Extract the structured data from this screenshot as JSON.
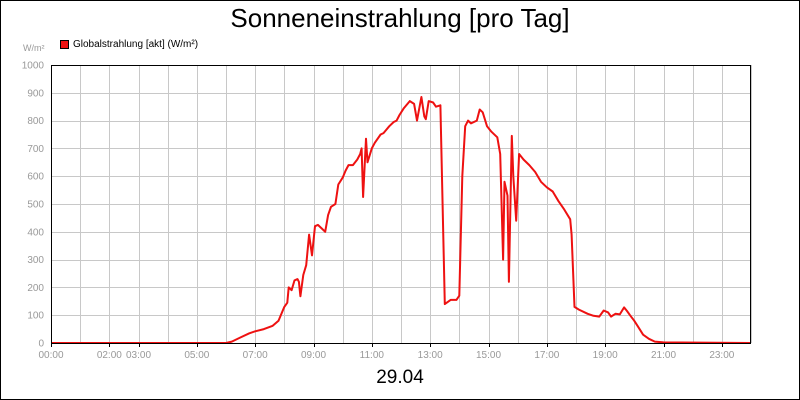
{
  "page": {
    "title": "Sonneneinstrahlung [pro Tag]",
    "date": "29.04",
    "unit": "W/m²"
  },
  "chart_data": {
    "type": "line",
    "title": "Sonneneinstrahlung [pro Tag]",
    "xlabel": "29.04",
    "ylabel": "W/m²",
    "xlim": [
      0,
      24
    ],
    "ylim": [
      0,
      1000
    ],
    "grid": true,
    "legend_position": "top-left",
    "x_tick_values": [
      0,
      2,
      3,
      5,
      7,
      9,
      11,
      13,
      15,
      17,
      19,
      21,
      23
    ],
    "x_tick_labels": [
      "00:00",
      "02:00",
      "03:00",
      "05:00",
      "07:00",
      "09:00",
      "11:00",
      "13:00",
      "15:00",
      "17:00",
      "19:00",
      "21:00",
      "23:00"
    ],
    "y_ticks": [
      0,
      100,
      200,
      300,
      400,
      500,
      600,
      700,
      800,
      900,
      1000
    ],
    "series": [
      {
        "name": "Globalstrahlung [akt] (W/m²)",
        "color": "#ee1111",
        "points": [
          [
            0.0,
            0
          ],
          [
            6.0,
            0
          ],
          [
            6.2,
            5
          ],
          [
            6.5,
            20
          ],
          [
            6.8,
            35
          ],
          [
            7.0,
            42
          ],
          [
            7.3,
            50
          ],
          [
            7.6,
            62
          ],
          [
            7.8,
            80
          ],
          [
            8.0,
            130
          ],
          [
            8.1,
            145
          ],
          [
            8.15,
            200
          ],
          [
            8.25,
            190
          ],
          [
            8.35,
            225
          ],
          [
            8.45,
            230
          ],
          [
            8.5,
            220
          ],
          [
            8.55,
            168
          ],
          [
            8.65,
            245
          ],
          [
            8.75,
            280
          ],
          [
            8.85,
            390
          ],
          [
            8.95,
            315
          ],
          [
            9.05,
            420
          ],
          [
            9.15,
            425
          ],
          [
            9.3,
            410
          ],
          [
            9.4,
            400
          ],
          [
            9.5,
            460
          ],
          [
            9.6,
            490
          ],
          [
            9.75,
            500
          ],
          [
            9.85,
            570
          ],
          [
            10.0,
            595
          ],
          [
            10.1,
            620
          ],
          [
            10.2,
            640
          ],
          [
            10.35,
            640
          ],
          [
            10.5,
            660
          ],
          [
            10.6,
            680
          ],
          [
            10.65,
            700
          ],
          [
            10.7,
            525
          ],
          [
            10.8,
            735
          ],
          [
            10.85,
            650
          ],
          [
            11.0,
            700
          ],
          [
            11.1,
            720
          ],
          [
            11.3,
            750
          ],
          [
            11.4,
            755
          ],
          [
            11.6,
            780
          ],
          [
            11.75,
            795
          ],
          [
            11.85,
            800
          ],
          [
            11.95,
            820
          ],
          [
            12.1,
            845
          ],
          [
            12.3,
            870
          ],
          [
            12.45,
            860
          ],
          [
            12.55,
            800
          ],
          [
            12.7,
            885
          ],
          [
            12.8,
            815
          ],
          [
            12.85,
            805
          ],
          [
            12.95,
            870
          ],
          [
            13.1,
            865
          ],
          [
            13.2,
            850
          ],
          [
            13.35,
            855
          ],
          [
            13.5,
            140
          ],
          [
            13.7,
            155
          ],
          [
            13.9,
            155
          ],
          [
            14.0,
            170
          ],
          [
            14.1,
            600
          ],
          [
            14.2,
            780
          ],
          [
            14.3,
            800
          ],
          [
            14.4,
            790
          ],
          [
            14.6,
            800
          ],
          [
            14.7,
            840
          ],
          [
            14.8,
            830
          ],
          [
            14.95,
            780
          ],
          [
            15.1,
            760
          ],
          [
            15.3,
            740
          ],
          [
            15.4,
            680
          ],
          [
            15.5,
            300
          ],
          [
            15.55,
            580
          ],
          [
            15.65,
            530
          ],
          [
            15.7,
            220
          ],
          [
            15.8,
            745
          ],
          [
            15.85,
            600
          ],
          [
            15.95,
            440
          ],
          [
            16.05,
            680
          ],
          [
            16.2,
            660
          ],
          [
            16.4,
            640
          ],
          [
            16.6,
            615
          ],
          [
            16.8,
            580
          ],
          [
            17.0,
            560
          ],
          [
            17.2,
            545
          ],
          [
            17.4,
            510
          ],
          [
            17.6,
            480
          ],
          [
            17.8,
            445
          ],
          [
            17.85,
            390
          ],
          [
            17.95,
            130
          ],
          [
            18.1,
            120
          ],
          [
            18.4,
            105
          ],
          [
            18.6,
            98
          ],
          [
            18.8,
            95
          ],
          [
            18.95,
            117
          ],
          [
            19.1,
            110
          ],
          [
            19.2,
            95
          ],
          [
            19.35,
            105
          ],
          [
            19.5,
            103
          ],
          [
            19.65,
            128
          ],
          [
            19.75,
            115
          ],
          [
            19.85,
            100
          ],
          [
            20.0,
            80
          ],
          [
            20.15,
            55
          ],
          [
            20.3,
            30
          ],
          [
            20.5,
            15
          ],
          [
            20.7,
            5
          ],
          [
            21.0,
            2
          ],
          [
            24.0,
            0
          ]
        ]
      }
    ]
  }
}
